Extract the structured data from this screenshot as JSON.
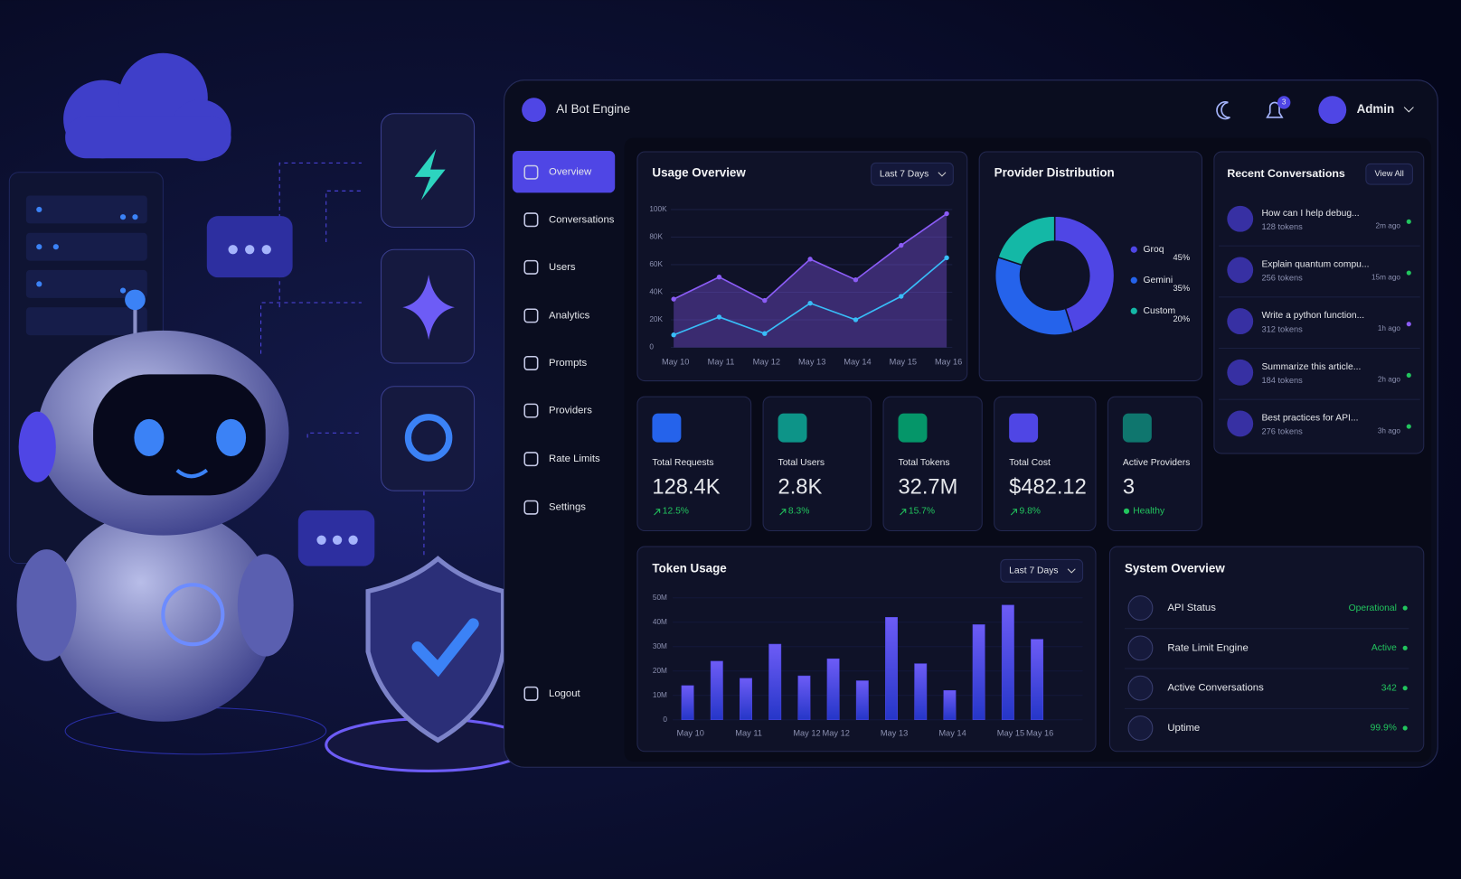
{
  "header": {
    "title": "AI Bot Engine",
    "notifications": "3",
    "user": "Admin"
  },
  "nav": [
    "Overview",
    "Conversations",
    "Users",
    "Analytics",
    "Prompts",
    "Providers",
    "Rate Limits",
    "Settings"
  ],
  "logout": "Logout",
  "chart_data": [
    {
      "type": "line",
      "title": "Usage Overview",
      "filter": "Last 7 Days",
      "categories": [
        "May 10",
        "May 11",
        "May 12",
        "May 13",
        "May 14",
        "May 15",
        "May 16"
      ],
      "series": [
        {
          "color": "#8b5cf6",
          "values": [
            35000,
            51000,
            34000,
            64000,
            49000,
            74000,
            97000
          ]
        },
        {
          "color": "#38bdf8",
          "values": [
            9000,
            22000,
            10000,
            32000,
            20000,
            37000,
            65000
          ]
        }
      ],
      "ylim": [
        0,
        100000
      ],
      "yticks": [
        0,
        {
          "value": 20000,
          "label": "20K"
        },
        {
          "value": 40000,
          "label": "40K"
        },
        {
          "value": 60000,
          "label": "60K"
        },
        {
          "value": 80000,
          "label": "80K"
        },
        {
          "value": 100000,
          "label": "100K"
        }
      ]
    },
    {
      "type": "pie",
      "title": "Provider Distribution",
      "categories": [
        "Groq",
        "Gemini",
        "Custom"
      ],
      "values": [
        45,
        35,
        20
      ],
      "value_labels": [
        "45%",
        "35%",
        "20%"
      ],
      "colors": [
        "#4f46e5",
        "#2563eb",
        "#14b8a6"
      ]
    },
    {
      "type": "bar",
      "title": "Token Usage",
      "filter": "Last 7 Days",
      "categories": [
        "May 10",
        null,
        "May 11",
        null,
        "May 12",
        "May 12",
        null,
        "May 13",
        null,
        "May 14",
        null,
        "May 15",
        "May 16"
      ],
      "values": [
        14000000,
        24000000,
        17000000,
        31000000,
        18000000,
        25000000,
        16000000,
        42000000,
        23000000,
        12000000,
        39000000,
        47000000,
        33000000
      ],
      "color": "#4f46e5",
      "ylim": [
        0,
        50000000
      ],
      "yticks": [
        0,
        {
          "value": 10000000,
          "label": "10M"
        },
        {
          "value": 20000000,
          "label": "20M"
        },
        {
          "value": 30000000,
          "label": "30M"
        },
        {
          "value": 40000000,
          "label": "40M"
        },
        {
          "value": 50000000,
          "label": "50M"
        }
      ]
    }
  ],
  "stats": [
    {
      "label": "Total Requests",
      "value": "128.4K",
      "change": "12.5%"
    },
    {
      "label": "Total Users",
      "value": "2.8K",
      "change": "8.3%"
    },
    {
      "label": "Total Tokens",
      "value": "32.7M",
      "change": "15.7%"
    },
    {
      "label": "Total Cost",
      "value": "$482.12",
      "change": "9.8%"
    },
    {
      "label": "Active Providers",
      "value": "3",
      "change": "Healthy"
    }
  ],
  "conversations": {
    "title": "Recent Conversations",
    "action": "View All",
    "items": [
      {
        "title": "How can I help debug...",
        "tokens": "128 tokens",
        "time": "2m ago"
      },
      {
        "title": "Explain quantum compu...",
        "tokens": "256 tokens",
        "time": "15m ago"
      },
      {
        "title": "Write a python function...",
        "tokens": "312 tokens",
        "time": "1h ago"
      },
      {
        "title": "Summarize this article...",
        "tokens": "184 tokens",
        "time": "2h ago"
      },
      {
        "title": "Best practices for API...",
        "tokens": "276 tokens",
        "time": "3h ago"
      }
    ]
  },
  "system": {
    "title": "System Overview",
    "items": [
      {
        "label": "API Status",
        "status": "Operational"
      },
      {
        "label": "Rate Limit Engine",
        "status": "Active"
      },
      {
        "label": "Active Conversations",
        "status": "342"
      },
      {
        "label": "Uptime",
        "status": "99.9%"
      }
    ]
  }
}
